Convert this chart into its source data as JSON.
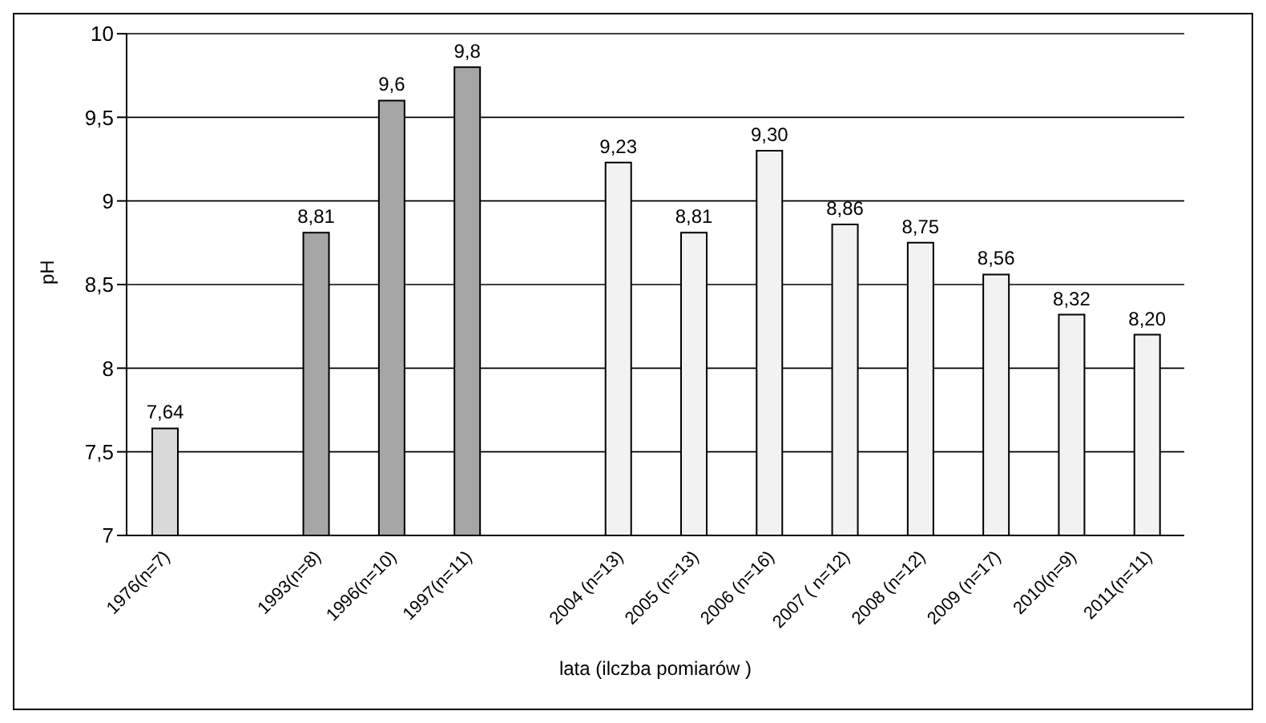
{
  "chart_data": {
    "type": "bar",
    "xlabel": "lata (ilczba pomiarów )",
    "ylabel": "pH",
    "categories": [
      "1976(n=7)",
      null,
      "1993(n=8)",
      "1996(n=10)",
      "1997(n=11)",
      null,
      "2004 (n=13)",
      "2005 (n=13)",
      "2006 (n=16)",
      "2007 ( n=12)",
      "2008 (n=12)",
      "2009 (n=17)",
      "2010(n=9)",
      "2011(n=11)"
    ],
    "values": [
      7.64,
      null,
      8.81,
      9.6,
      9.8,
      null,
      9.23,
      8.81,
      9.3,
      8.86,
      8.75,
      8.56,
      8.32,
      8.2
    ],
    "value_labels": [
      "7,64",
      null,
      "8,81",
      "9,6",
      "9,8",
      null,
      "9,23",
      "8,81",
      "9,30",
      "8,86",
      "8,75",
      "8,56",
      "8,32",
      "8,20"
    ],
    "colors": [
      "#d9d9d9",
      null,
      "#a6a6a6",
      "#a6a6a6",
      "#a6a6a6",
      null,
      "#f2f2f2",
      "#f2f2f2",
      "#f2f2f2",
      "#f2f2f2",
      "#f2f2f2",
      "#f2f2f2",
      "#f2f2f2",
      "#f2f2f2"
    ],
    "ylim": [
      7,
      10
    ],
    "yticks": [
      7,
      {
        "value": 7.5,
        "label": "7,5"
      },
      8,
      {
        "value": 8.5,
        "label": "8,5"
      },
      9,
      {
        "value": 9.5,
        "label": "9,5"
      },
      10
    ],
    "grid": "y"
  }
}
